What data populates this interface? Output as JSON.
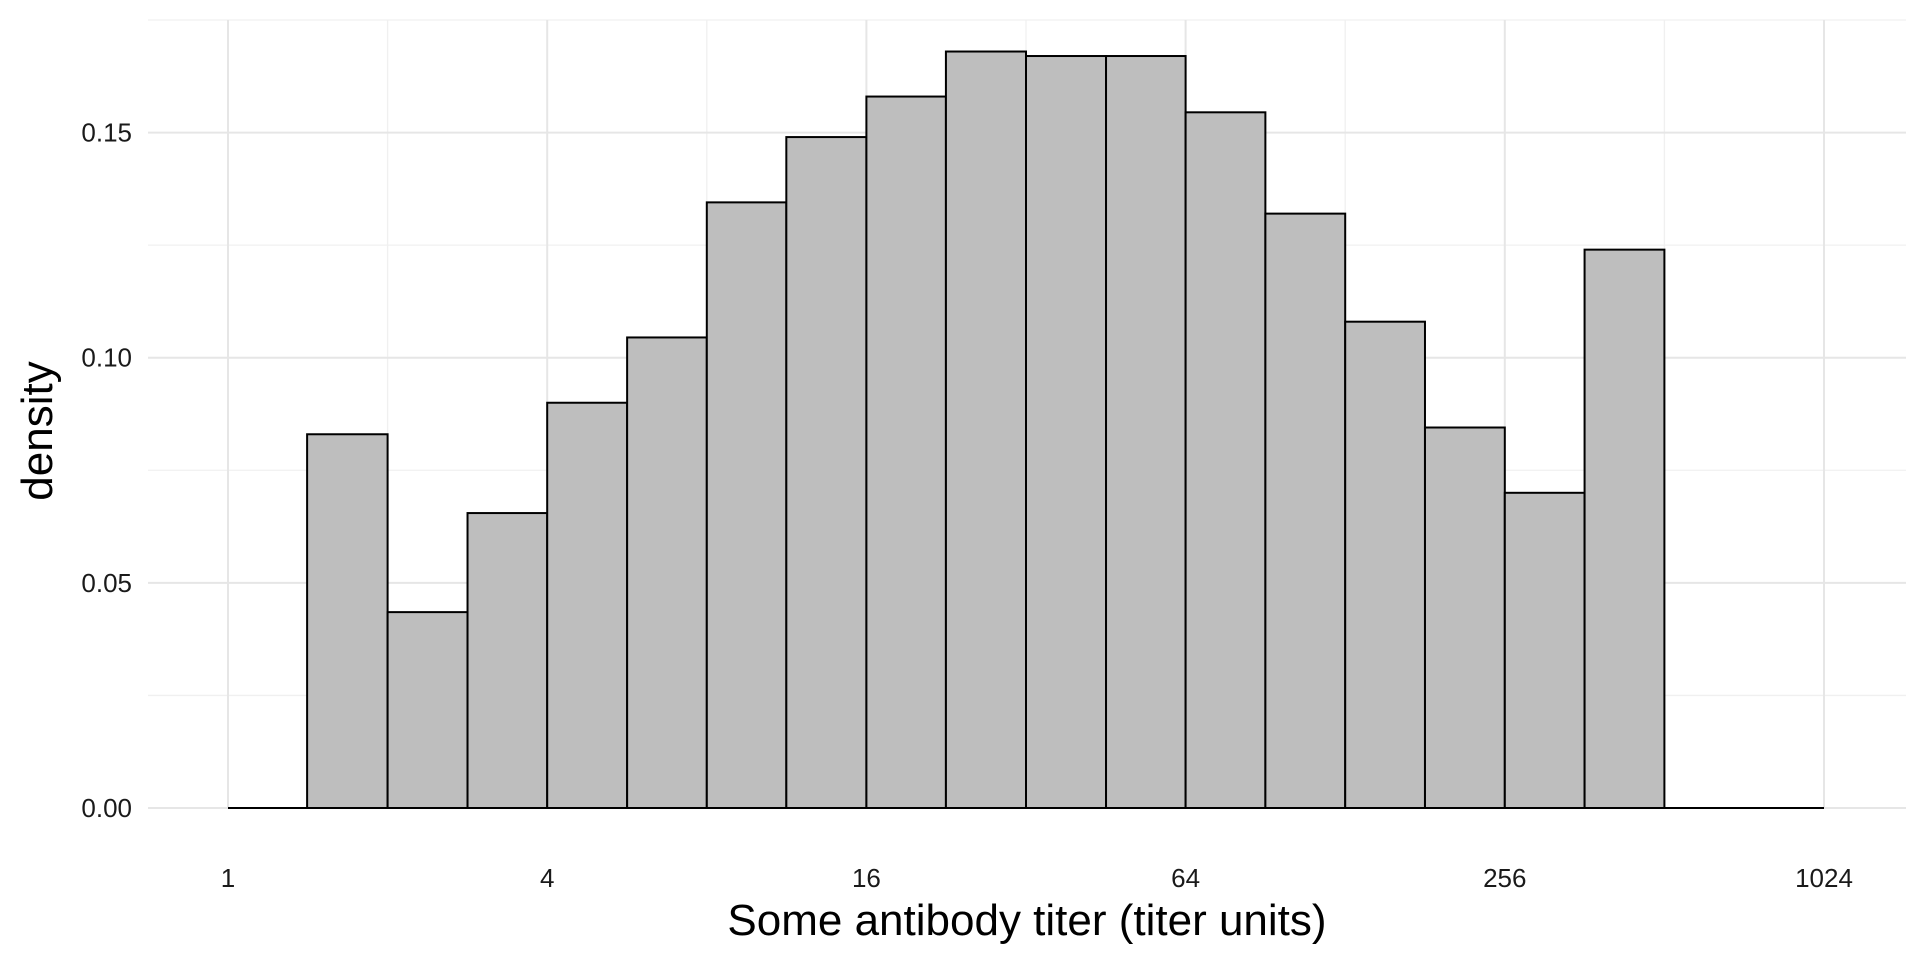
{
  "chart_data": {
    "type": "bar",
    "subtype": "histogram",
    "title": "",
    "xlabel": "Some antibody titer (titer units)",
    "ylabel": "density",
    "x_scale": "log2",
    "xlim": [
      1,
      1024
    ],
    "ylim": [
      0,
      0.175
    ],
    "grid": true,
    "x_ticks": [
      {
        "value": 1,
        "label": "1"
      },
      {
        "value": 4,
        "label": "4"
      },
      {
        "value": 16,
        "label": "16"
      },
      {
        "value": 64,
        "label": "64"
      },
      {
        "value": 256,
        "label": "256"
      },
      {
        "value": 1024,
        "label": "1024"
      }
    ],
    "x_minor_ticks": [
      2,
      8,
      32,
      128,
      512
    ],
    "y_ticks": [
      {
        "value": 0.0,
        "label": "0.00"
      },
      {
        "value": 0.05,
        "label": "0.05"
      },
      {
        "value": 0.1,
        "label": "0.10"
      },
      {
        "value": 0.15,
        "label": "0.15"
      }
    ],
    "y_minor_ticks": [
      0.025,
      0.075,
      0.125,
      0.175
    ],
    "bins": [
      {
        "from": 1.0,
        "to": 1.41,
        "value": 0.0
      },
      {
        "from": 1.41,
        "to": 2.0,
        "value": 0.083
      },
      {
        "from": 2.0,
        "to": 2.83,
        "value": 0.0435
      },
      {
        "from": 2.83,
        "to": 4.0,
        "value": 0.0655
      },
      {
        "from": 4.0,
        "to": 5.66,
        "value": 0.09
      },
      {
        "from": 5.66,
        "to": 8.0,
        "value": 0.1045
      },
      {
        "from": 8.0,
        "to": 11.3,
        "value": 0.1345
      },
      {
        "from": 11.3,
        "to": 16.0,
        "value": 0.149
      },
      {
        "from": 16.0,
        "to": 22.6,
        "value": 0.158
      },
      {
        "from": 22.6,
        "to": 32.0,
        "value": 0.168
      },
      {
        "from": 32.0,
        "to": 45.3,
        "value": 0.167
      },
      {
        "from": 45.3,
        "to": 64.0,
        "value": 0.167
      },
      {
        "from": 64.0,
        "to": 90.5,
        "value": 0.1545
      },
      {
        "from": 90.5,
        "to": 128.0,
        "value": 0.132
      },
      {
        "from": 128.0,
        "to": 181.0,
        "value": 0.108
      },
      {
        "from": 181.0,
        "to": 256.0,
        "value": 0.0845
      },
      {
        "from": 256.0,
        "to": 362.0,
        "value": 0.07
      },
      {
        "from": 362.0,
        "to": 512.0,
        "value": 0.124
      },
      {
        "from": 512.0,
        "to": 724.0,
        "value": 0.0
      },
      {
        "from": 724.0,
        "to": 1024.0,
        "value": 0.0
      }
    ],
    "colors": {
      "bar_fill": "#bebebe",
      "bar_outline": "#000000",
      "grid": "#ebebeb"
    }
  }
}
